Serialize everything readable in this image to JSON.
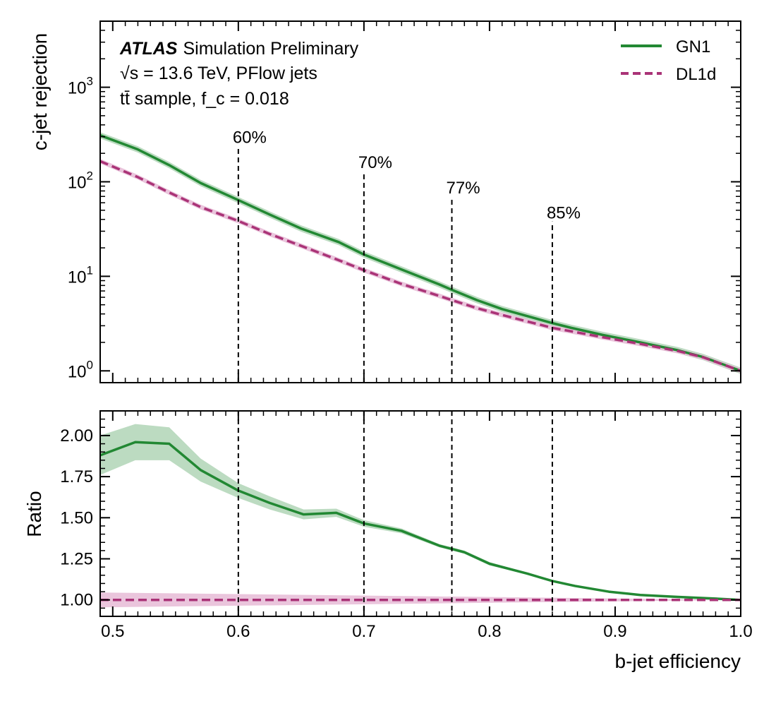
{
  "chart_data": [
    {
      "type": "line",
      "panel": "main",
      "yscale": "log",
      "ylabel": "c-jet rejection",
      "xlabel": "",
      "xlim": [
        0.49,
        1.0
      ],
      "ylim": [
        0.75,
        5000
      ],
      "ytick_labels": [
        "10^0",
        "10^1",
        "10^2",
        "10^3"
      ],
      "ytick_values": [
        1,
        10,
        100,
        1000
      ],
      "annotation": {
        "experiment": "ATLAS",
        "status": "Simulation Preliminary",
        "line2": "√s = 13.6 TeV, PFlow jets",
        "line3": "tt̄ sample, f_c = 0.018"
      },
      "working_points": [
        {
          "x": 0.6,
          "label": "60%",
          "y_top": 240
        },
        {
          "x": 0.7,
          "label": "70%",
          "y_top": 130
        },
        {
          "x": 0.77,
          "label": "77%",
          "y_top": 70
        },
        {
          "x": 0.85,
          "label": "85%",
          "y_top": 38
        }
      ],
      "legend_position": "top-right",
      "series": [
        {
          "name": "GN1",
          "color": "#228833",
          "style": "solid",
          "x": [
            0.49,
            0.52,
            0.545,
            0.57,
            0.6,
            0.625,
            0.65,
            0.68,
            0.7,
            0.73,
            0.76,
            0.77,
            0.79,
            0.81,
            0.85,
            0.865,
            0.89,
            0.92,
            0.95,
            0.97,
            1.0
          ],
          "y": [
            310,
            220,
            150,
            97,
            64,
            45,
            32,
            23,
            17,
            11.8,
            8.2,
            7.2,
            5.6,
            4.5,
            3.2,
            2.85,
            2.4,
            2.0,
            1.65,
            1.4,
            1.0
          ],
          "band_rel": 0.08
        },
        {
          "name": "DL1d",
          "color": "#AA3377",
          "style": "dashed",
          "x": [
            0.49,
            0.52,
            0.545,
            0.57,
            0.6,
            0.625,
            0.65,
            0.68,
            0.7,
            0.73,
            0.76,
            0.77,
            0.79,
            0.81,
            0.85,
            0.865,
            0.89,
            0.92,
            0.95,
            0.97,
            1.0
          ],
          "y": [
            165,
            112,
            77,
            54,
            38.5,
            28,
            21,
            14.8,
            11.6,
            8.3,
            6.2,
            5.6,
            4.6,
            3.9,
            2.85,
            2.62,
            2.27,
            1.93,
            1.62,
            1.39,
            1.0
          ],
          "band_rel": 0.06,
          "band_color": "#E8BFD8"
        }
      ]
    },
    {
      "type": "line",
      "panel": "ratio",
      "ylabel": "Ratio",
      "xlabel": "b-jet efficiency",
      "xlim": [
        0.49,
        1.0
      ],
      "ylim": [
        0.9,
        2.15
      ],
      "xtick_values": [
        0.5,
        0.6,
        0.7,
        0.8,
        0.9,
        1.0
      ],
      "xtick_labels": [
        "0.5",
        "0.6",
        "0.7",
        "0.8",
        "0.9",
        "1.0"
      ],
      "ytick_values": [
        1.0,
        1.25,
        1.5,
        1.75,
        2.0
      ],
      "ytick_labels": [
        "1.00",
        "1.25",
        "1.50",
        "1.75",
        "2.00"
      ],
      "working_points_x": [
        0.6,
        0.7,
        0.77,
        0.85
      ],
      "series": [
        {
          "name": "GN1 / DL1d",
          "color": "#228833",
          "style": "solid",
          "x": [
            0.49,
            0.518,
            0.545,
            0.57,
            0.6,
            0.625,
            0.652,
            0.678,
            0.7,
            0.73,
            0.76,
            0.78,
            0.8,
            0.83,
            0.85,
            0.868,
            0.895,
            0.92,
            0.95,
            0.98,
            1.0
          ],
          "y": [
            1.88,
            1.96,
            1.95,
            1.79,
            1.665,
            1.59,
            1.52,
            1.53,
            1.465,
            1.42,
            1.33,
            1.29,
            1.22,
            1.16,
            1.115,
            1.085,
            1.05,
            1.03,
            1.018,
            1.008,
            1.0
          ],
          "band_lo": [
            1.76,
            1.85,
            1.85,
            1.72,
            1.62,
            1.55,
            1.49,
            1.505,
            1.445,
            1.405,
            1.32,
            1.28,
            1.21,
            1.155,
            1.11,
            1.08,
            1.047,
            1.027,
            1.016,
            1.006,
            1.0
          ],
          "band_hi": [
            2.0,
            2.07,
            2.05,
            1.86,
            1.71,
            1.63,
            1.55,
            1.555,
            1.485,
            1.435,
            1.34,
            1.3,
            1.23,
            1.165,
            1.12,
            1.09,
            1.053,
            1.033,
            1.02,
            1.01,
            1.0
          ]
        },
        {
          "name": "DL1d / DL1d",
          "color": "#AA3377",
          "style": "dashed",
          "x": [
            0.49,
            1.0
          ],
          "y": [
            1.0,
            1.0
          ],
          "band_lo": [
            0.955,
            1.0
          ],
          "band_hi": [
            1.045,
            1.0
          ],
          "band_color": "#E8BFD8"
        }
      ]
    }
  ]
}
